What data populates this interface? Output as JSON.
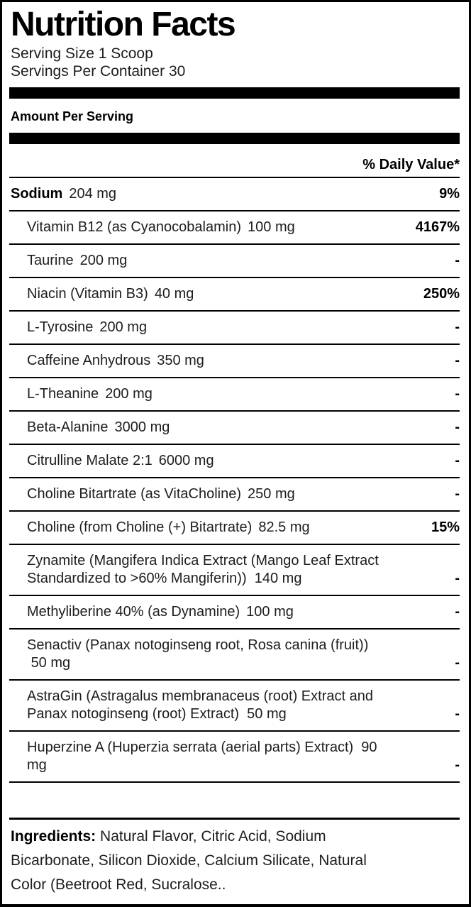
{
  "header": {
    "title": "Nutrition Facts",
    "serving_size": "Serving Size 1 Scoop",
    "servings_per_container": "Servings Per Container 30",
    "amount_per_serving": "Amount Per Serving",
    "daily_value_header": "% Daily Value*"
  },
  "colors": {
    "text_regular": "#1d1d1d",
    "text_bold": "#000000",
    "background": "#ffffff",
    "rule": "#000000"
  },
  "rows": [
    {
      "name": "Sodium",
      "amount": "204 mg",
      "dv": "9%",
      "bold_name": true,
      "indent": false
    },
    {
      "name": "Vitamin B12 (as Cyanocobalamin)",
      "amount": "100 mg",
      "dv": "4167%",
      "bold_name": false,
      "indent": true
    },
    {
      "name": "Taurine",
      "amount": "200 mg",
      "dv": "-",
      "bold_name": false,
      "indent": true
    },
    {
      "name": "Niacin (Vitamin B3)",
      "amount": "40 mg",
      "dv": "250%",
      "bold_name": false,
      "indent": true
    },
    {
      "name": "L-Tyrosine",
      "amount": "200 mg",
      "dv": "-",
      "bold_name": false,
      "indent": true
    },
    {
      "name": "Caffeine Anhydrous",
      "amount": "350 mg",
      "dv": "-",
      "bold_name": false,
      "indent": true
    },
    {
      "name": "L-Theanine",
      "amount": "200 mg",
      "dv": "-",
      "bold_name": false,
      "indent": true
    },
    {
      "name": "Beta-Alanine",
      "amount": "3000 mg",
      "dv": "-",
      "bold_name": false,
      "indent": true
    },
    {
      "name": "Citrulline Malate 2:1",
      "amount": "6000 mg",
      "dv": "-",
      "bold_name": false,
      "indent": true
    },
    {
      "name": "Choline Bitartrate (as VitaCholine)",
      "amount": "250 mg",
      "dv": "-",
      "bold_name": false,
      "indent": true
    },
    {
      "name": "Choline (from Choline (+) Bitartrate)",
      "amount": "82.5 mg",
      "dv": "15%",
      "bold_name": false,
      "indent": true
    },
    {
      "text": "Zynamite (Mangifera Indica Extract (Mango Leaf Extract\nStandardized to >60% Mangiferin))  140 mg",
      "dv": "-",
      "indent": true
    },
    {
      "name": "Methyliberine 40% (as Dynamine)",
      "amount": "100 mg",
      "dv": "-",
      "bold_name": false,
      "indent": true
    },
    {
      "text": "Senactiv (Panax notoginseng root, Rosa canina (fruit))\n 50 mg",
      "dv": "-",
      "indent": true
    },
    {
      "text": "AstraGin (Astragalus membranaceus (root) Extract and\nPanax notoginseng (root) Extract)  50 mg",
      "dv": "-",
      "indent": true
    },
    {
      "text": "Huperzine A (Huperzia serrata (aerial parts) Extract)  90\nmg",
      "dv": "-",
      "indent": true
    }
  ],
  "ingredients": {
    "label": "Ingredients:",
    "text": "Natural Flavor, Citric Acid, Sodium\nBicarbonate, Silicon Dioxide, Calcium Silicate, Natural\nColor (Beetroot Red, Sucralose.."
  }
}
